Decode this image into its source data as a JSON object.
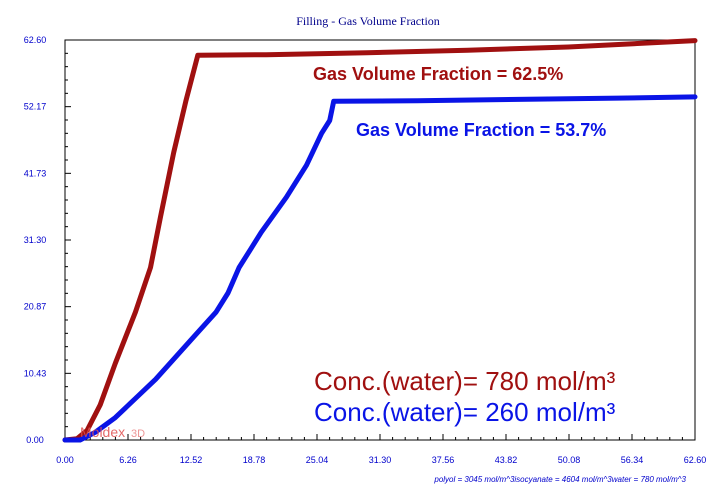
{
  "chart_data": {
    "type": "line",
    "title": "Filling - Gas Volume Fraction",
    "xlabel": "polyol = 3045 mol/m^3isocyanate = 4604 mol/m^3water = 780 mol/m^3",
    "ylabel": "",
    "xlim": [
      0,
      62.6
    ],
    "ylim": [
      0,
      62.6
    ],
    "x_ticks": [
      "0.00",
      "6.26",
      "12.52",
      "18.78",
      "25.04",
      "31.30",
      "37.56",
      "43.82",
      "50.08",
      "56.34",
      "62.60"
    ],
    "y_ticks": [
      "0.00",
      "10.43",
      "20.87",
      "31.30",
      "41.73",
      "52.17",
      "62.60"
    ],
    "grid": false,
    "series": [
      {
        "color": "#a01010",
        "points": [
          [
            0,
            0
          ],
          [
            1.2,
            0.2
          ],
          [
            2.2,
            1.5
          ],
          [
            3.5,
            5.5
          ],
          [
            5.0,
            12
          ],
          [
            7.0,
            20
          ],
          [
            8.5,
            27
          ],
          [
            9.5,
            35
          ],
          [
            10.8,
            45
          ],
          [
            12.0,
            53
          ],
          [
            13.2,
            60.2
          ],
          [
            20,
            60.3
          ],
          [
            30,
            60.6
          ],
          [
            40,
            61.0
          ],
          [
            50,
            61.5
          ],
          [
            62.6,
            62.5
          ]
        ]
      },
      {
        "color": "#0a14e6",
        "points": [
          [
            0,
            0
          ],
          [
            1.5,
            0
          ],
          [
            3.0,
            1.2
          ],
          [
            5.0,
            3.5
          ],
          [
            7.0,
            6.5
          ],
          [
            9.0,
            9.5
          ],
          [
            11.0,
            13
          ],
          [
            13.0,
            16.5
          ],
          [
            15.0,
            20
          ],
          [
            16.2,
            23
          ],
          [
            17.3,
            27
          ],
          [
            18.5,
            30
          ],
          [
            19.5,
            32.5
          ],
          [
            22.0,
            38
          ],
          [
            24.0,
            43
          ],
          [
            25.5,
            48
          ],
          [
            26.3,
            50
          ],
          [
            26.7,
            53.0
          ],
          [
            35,
            53.1
          ],
          [
            45,
            53.3
          ],
          [
            55,
            53.5
          ],
          [
            62.6,
            53.7
          ]
        ]
      }
    ],
    "annotations": {
      "red_fraction": "Gas Volume Fraction = 62.5%",
      "blue_fraction": "Gas Volume Fraction = 53.7%",
      "conc_red": "Conc.(water)= 780 mol/m³",
      "conc_blue": "Conc.(water)= 260 mol/m³"
    },
    "watermark": "Moldex",
    "watermark_3d": "3D"
  }
}
